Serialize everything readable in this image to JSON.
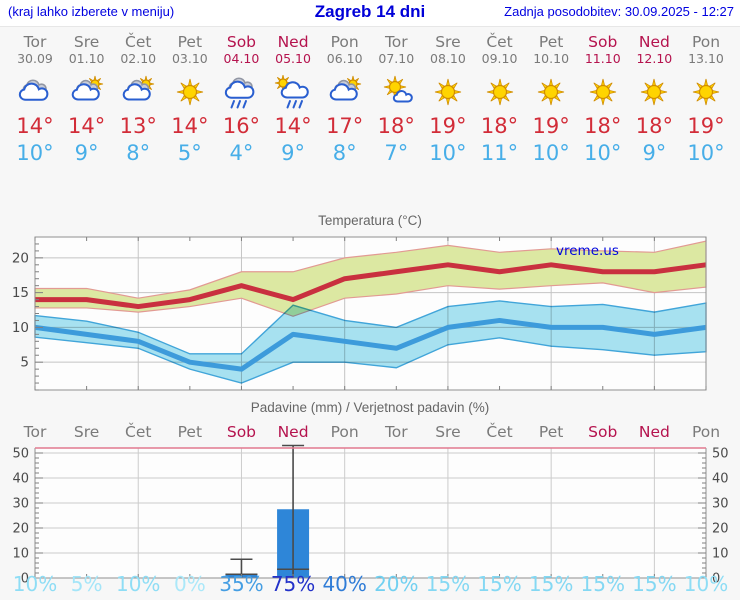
{
  "header": {
    "left": "(kraj lahko izberete v meniju)",
    "title": "Zagreb 14 dni",
    "right": "Zadnja posodobitev: 30.09.2025 - 12:27"
  },
  "colors": {
    "header_blue": "#0000d8",
    "weekday_gray": "#7a7a7a",
    "weekend_crimson": "#b5134e",
    "high_temp_red": "#d22c38",
    "low_temp_blue": "#47aee8",
    "max_line": "#c9303f",
    "max_band_fill": "#dce8a2",
    "max_band_stroke": "#e29a93",
    "min_line": "#3d9bdb",
    "min_band_fill": "#a8e3f2",
    "min_band_stroke": "#41a6db",
    "bar_blue": "#2e86d8",
    "watermark_blue": "#0008dd"
  },
  "forecast": {
    "days": [
      {
        "name": "Tor",
        "date": "30.09",
        "weekend": false,
        "icon": "cloudy",
        "high": "14°",
        "low": "10°"
      },
      {
        "name": "Sre",
        "date": "01.10",
        "weekend": false,
        "icon": "sun-cloud",
        "high": "14°",
        "low": "9°"
      },
      {
        "name": "Čet",
        "date": "02.10",
        "weekend": false,
        "icon": "sun-cloud",
        "high": "13°",
        "low": "8°"
      },
      {
        "name": "Pet",
        "date": "03.10",
        "weekend": false,
        "icon": "sun",
        "high": "14°",
        "low": "5°"
      },
      {
        "name": "Sob",
        "date": "04.10",
        "weekend": true,
        "icon": "rain",
        "high": "16°",
        "low": "4°"
      },
      {
        "name": "Ned",
        "date": "05.10",
        "weekend": true,
        "icon": "sun-rain",
        "high": "14°",
        "low": "9°"
      },
      {
        "name": "Pon",
        "date": "06.10",
        "weekend": false,
        "icon": "sun-cloud",
        "high": "17°",
        "low": "8°"
      },
      {
        "name": "Tor",
        "date": "07.10",
        "weekend": false,
        "icon": "sun-small-cloud",
        "high": "18°",
        "low": "7°"
      },
      {
        "name": "Sre",
        "date": "08.10",
        "weekend": false,
        "icon": "sun",
        "high": "19°",
        "low": "10°"
      },
      {
        "name": "Čet",
        "date": "09.10",
        "weekend": false,
        "icon": "sun",
        "high": "18°",
        "low": "11°"
      },
      {
        "name": "Pet",
        "date": "10.10",
        "weekend": false,
        "icon": "sun",
        "high": "19°",
        "low": "10°"
      },
      {
        "name": "Sob",
        "date": "11.10",
        "weekend": true,
        "icon": "sun",
        "high": "18°",
        "low": "10°"
      },
      {
        "name": "Ned",
        "date": "12.10",
        "weekend": true,
        "icon": "sun",
        "high": "18°",
        "low": "9°"
      },
      {
        "name": "Pon",
        "date": "13.10",
        "weekend": false,
        "icon": "sun",
        "high": "19°",
        "low": "10°"
      }
    ]
  },
  "chart_data": [
    {
      "type": "area",
      "title": "Temperatura (°C)",
      "watermark": "vreme.us",
      "categories": [
        "Tor 30.09",
        "Sre 01.10",
        "Čet 02.10",
        "Pet 03.10",
        "Sob 04.10",
        "Ned 05.10",
        "Pon 06.10",
        "Tor 07.10",
        "Sre 08.10",
        "Čet 09.10",
        "Pet 10.10",
        "Sob 11.10",
        "Ned 12.10",
        "Pon 13.10"
      ],
      "ylim": [
        1,
        23
      ],
      "yticks": [
        5,
        10,
        15,
        20
      ],
      "grid": {
        "vertical_every_n_days": 2,
        "horizontal_at_yticks": true
      },
      "series": [
        {
          "name": "max-temp-line",
          "color": "#c9303f",
          "values": [
            14,
            14,
            13,
            14,
            16,
            14,
            17,
            18,
            19,
            18,
            19,
            18,
            18,
            19
          ]
        },
        {
          "name": "max-temp-band",
          "kind": "band",
          "fill": "#dce8a2",
          "stroke": "#e29a93",
          "upper": [
            15.6,
            15.6,
            14.2,
            15.4,
            18.0,
            18.0,
            20.0,
            20.8,
            21.8,
            20.8,
            21.3,
            21.0,
            20.8,
            22.4
          ],
          "lower": [
            12.8,
            12.8,
            12.2,
            13.0,
            14.2,
            11.6,
            14.2,
            14.8,
            16.0,
            15.5,
            16.0,
            16.4,
            15.0,
            15.8
          ]
        },
        {
          "name": "min-temp-line",
          "color": "#3d9bdb",
          "values": [
            10,
            9,
            8,
            5,
            4,
            9,
            8,
            7,
            10,
            11,
            10,
            10,
            9,
            10
          ]
        },
        {
          "name": "min-temp-band",
          "kind": "band",
          "fill": "#a8e3f2",
          "stroke": "#41a6db",
          "upper": [
            11.7,
            10.9,
            9.3,
            6.2,
            6.2,
            13.2,
            11.0,
            10.0,
            13.0,
            13.8,
            13.0,
            13.3,
            12.2,
            13.5
          ],
          "lower": [
            8.6,
            7.8,
            7.0,
            4.0,
            2.0,
            5.0,
            5.0,
            4.2,
            7.5,
            8.5,
            7.3,
            6.8,
            6.0,
            6.5
          ]
        }
      ]
    },
    {
      "type": "bar",
      "title": "Padavine (mm) / Verjetnost padavin (%)",
      "categories": [
        "Tor",
        "Sre",
        "Čet",
        "Pet",
        "Sob",
        "Ned",
        "Pon",
        "Tor",
        "Sre",
        "Čet",
        "Pet",
        "Sob",
        "Ned",
        "Pon"
      ],
      "weekend": [
        false,
        false,
        false,
        false,
        true,
        true,
        false,
        false,
        false,
        false,
        false,
        true,
        true,
        false
      ],
      "values": [
        0,
        0,
        0,
        0,
        1.5,
        27.5,
        0,
        0,
        0,
        0,
        0,
        0,
        0,
        0
      ],
      "whiskers": [
        null,
        null,
        null,
        null,
        {
          "low": 1.5,
          "high": 7.5
        },
        {
          "low": 3.5,
          "high": 53
        },
        null,
        null,
        null,
        null,
        null,
        null,
        null,
        null
      ],
      "probabilities": [
        {
          "label": "10%",
          "color": "#8eddf5"
        },
        {
          "label": "5%",
          "color": "#a4e5f8"
        },
        {
          "label": "10%",
          "color": "#8eddf5"
        },
        {
          "label": "0%",
          "color": "#abe8f9"
        },
        {
          "label": "35%",
          "color": "#459ee3"
        },
        {
          "label": "75%",
          "color": "#2332c9"
        },
        {
          "label": "40%",
          "color": "#2f7cd7"
        },
        {
          "label": "20%",
          "color": "#71d0f1"
        },
        {
          "label": "15%",
          "color": "#84d8f3"
        },
        {
          "label": "15%",
          "color": "#84d8f3"
        },
        {
          "label": "15%",
          "color": "#84d8f3"
        },
        {
          "label": "15%",
          "color": "#84d8f3"
        },
        {
          "label": "15%",
          "color": "#84d8f3"
        },
        {
          "label": "10%",
          "color": "#8eddf5"
        }
      ],
      "ylim": [
        0,
        52
      ],
      "yticks": [
        0,
        10,
        20,
        30,
        40,
        50
      ],
      "bar_color": "#2e86d8",
      "axis_labels_both_sides": true
    }
  ]
}
